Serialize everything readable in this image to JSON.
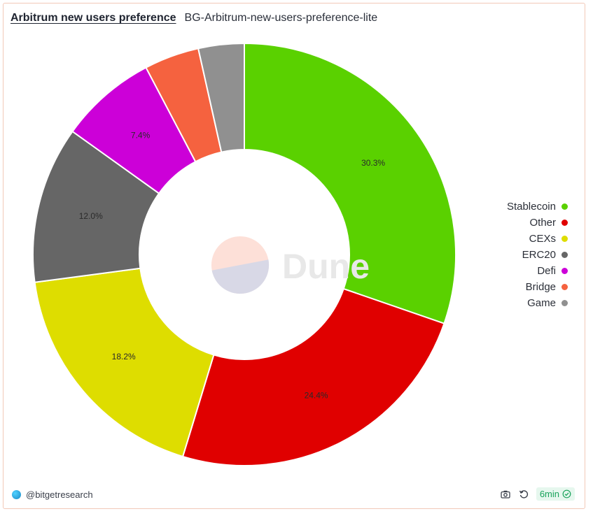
{
  "header": {
    "title": "Arbitrum new users preference",
    "subtitle": "BG-Arbitrum-new-users-preference-lite"
  },
  "watermark": {
    "text": "Dune"
  },
  "footer": {
    "author": "@bitgetresearch",
    "refresh_badge": "6min",
    "icons": [
      "camera-icon",
      "refresh-icon",
      "check-circle-icon"
    ]
  },
  "chart_data": {
    "type": "pie",
    "style": "donut",
    "categories": [
      "Stablecoin",
      "Other",
      "CEXs",
      "ERC20",
      "Defi",
      "Bridge",
      "Game"
    ],
    "values": [
      30.3,
      24.4,
      18.2,
      12.0,
      7.4,
      4.2,
      3.5
    ],
    "labels": [
      "30.3%",
      "24.4%",
      "18.2%",
      "12.0%",
      "7.4%",
      "",
      ""
    ],
    "colors": [
      "#5ad100",
      "#e00000",
      "#dedd00",
      "#666666",
      "#cc00d8",
      "#f5623f",
      "#909090"
    ],
    "legend": "right",
    "title": "Arbitrum new users preference"
  }
}
